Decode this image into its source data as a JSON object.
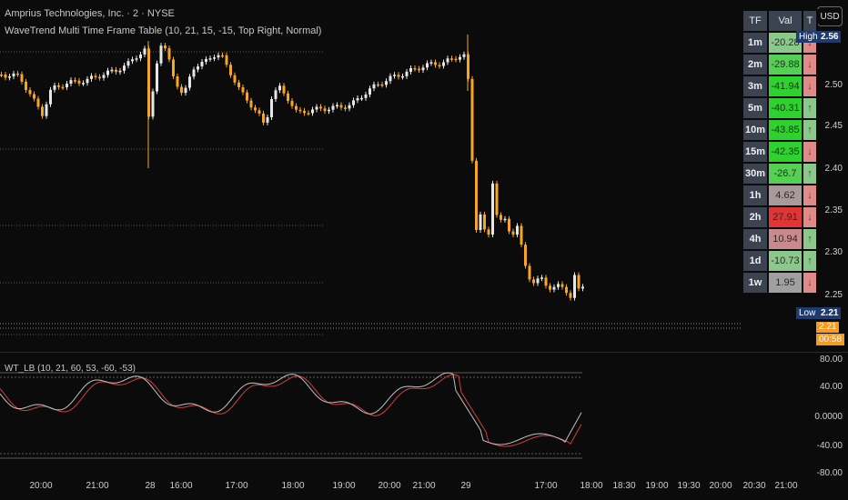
{
  "header": {
    "symbol_line": "Amprius Technologies, Inc. · 2 · NYSE",
    "indicator_line": "WaveTrend Multi Time Frame Table (10, 21, 15, -15, Top Right, Normal)"
  },
  "currency_button": "USD",
  "table": {
    "headers": [
      "TF",
      "Val",
      "T"
    ],
    "rows": [
      {
        "tf": "1m",
        "val": "-20.28",
        "dir": "↓",
        "val_color": "#8cc88c",
        "t_color": "#e08a8a"
      },
      {
        "tf": "2m",
        "val": "-29.88",
        "dir": "↓",
        "val_color": "#55d055",
        "t_color": "#e08a8a"
      },
      {
        "tf": "3m",
        "val": "-41.94",
        "dir": "↓",
        "val_color": "#2ed12e",
        "t_color": "#e08a8a"
      },
      {
        "tf": "5m",
        "val": "-40.31",
        "dir": "↑",
        "val_color": "#2ed12e",
        "t_color": "#8cc88c"
      },
      {
        "tf": "10m",
        "val": "-43.85",
        "dir": "↑",
        "val_color": "#2ed12e",
        "t_color": "#8cc88c"
      },
      {
        "tf": "15m",
        "val": "-42.35",
        "dir": "↓",
        "val_color": "#2ed12e",
        "t_color": "#e08a8a"
      },
      {
        "tf": "30m",
        "val": "-26.7",
        "dir": "↑",
        "val_color": "#55d055",
        "t_color": "#8cc88c"
      },
      {
        "tf": "1h",
        "val": "4.62",
        "dir": "↓",
        "val_color": "#a89a9a",
        "t_color": "#e08a8a"
      },
      {
        "tf": "2h",
        "val": "27.91",
        "dir": "↓",
        "val_color": "#e03535",
        "t_color": "#e08a8a"
      },
      {
        "tf": "4h",
        "val": "10.94",
        "dir": "↑",
        "val_color": "#c88a8a",
        "t_color": "#8cc88c"
      },
      {
        "tf": "1d",
        "val": "-10.73",
        "dir": "↑",
        "val_color": "#8cc88c",
        "t_color": "#8cc88c"
      },
      {
        "tf": "1w",
        "val": "1.95",
        "dir": "↓",
        "val_color": "#a0a0a0",
        "t_color": "#e08a8a"
      }
    ]
  },
  "price_axis": {
    "labels": [
      "2.50",
      "2.45",
      "2.40",
      "2.35",
      "2.30",
      "2.25"
    ],
    "high_label": "High",
    "high_value": "2.56",
    "low_label": "Low",
    "low_value": "2.21",
    "last_price": "2.21",
    "countdown": "00:58"
  },
  "oscillator": {
    "label": "WT_LB (10, 21, 60, 53, -60, -53)",
    "axis_labels": [
      "80.00",
      "40.00",
      "0.0000",
      "-40.00",
      "-80.00"
    ]
  },
  "time_axis": {
    "labels": [
      "20:00",
      "21:00",
      "28",
      "16:00",
      "17:00",
      "18:00",
      "19:00",
      "20:00",
      "21:00",
      "29",
      "17:00",
      "18:00",
      "18:30",
      "19:00",
      "19:30",
      "20:00",
      "20:30",
      "21:00"
    ]
  },
  "colors": {
    "up_candle": "#e6e6e6",
    "down_candle": "#f5a623",
    "wt1": "#c0c0c0",
    "wt2": "#d04040",
    "high_tag": "#1f3a6e",
    "low_tag": "#1f3a6e",
    "price_tag": "#f59a23"
  }
}
